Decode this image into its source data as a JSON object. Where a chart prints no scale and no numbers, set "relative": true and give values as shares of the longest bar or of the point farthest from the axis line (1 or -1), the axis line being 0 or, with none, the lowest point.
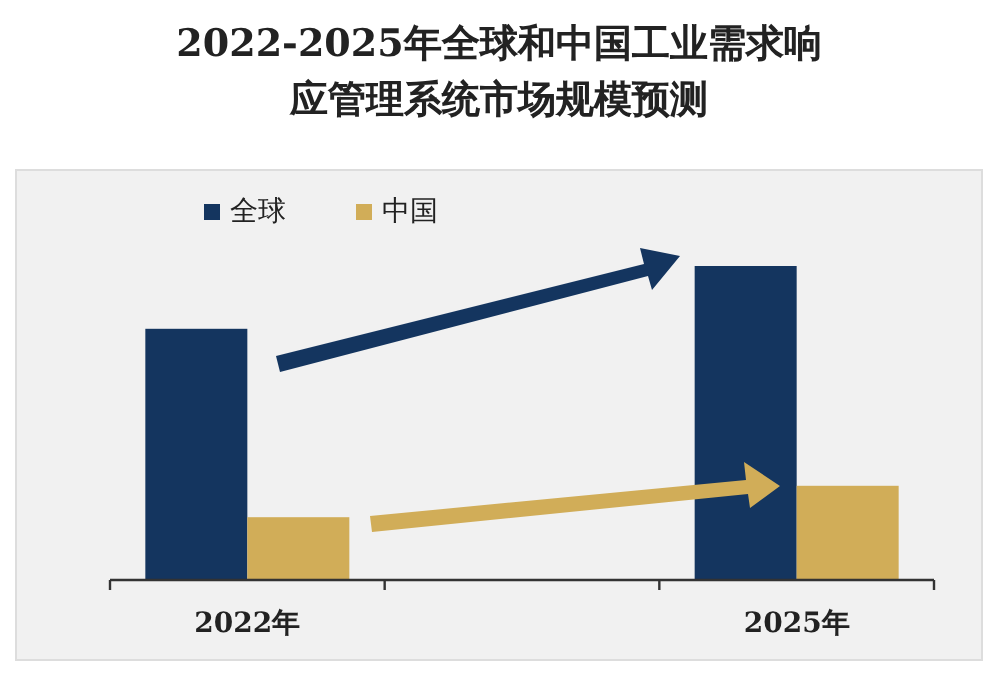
{
  "chart_data": {
    "type": "bar",
    "title": "2022-2025年全球和中国工业需求响应管理系统市场规模预测",
    "categories": [
      "2022年",
      null,
      "2025年"
    ],
    "relative": true,
    "legend": "top left",
    "series": [
      {
        "name": "全球",
        "color": "#14355f",
        "values": [
          0.8,
          null,
          1
        ]
      },
      {
        "name": "中国",
        "color": "#d1ad58",
        "values": [
          0.2,
          null,
          0.3
        ]
      }
    ]
  }
}
